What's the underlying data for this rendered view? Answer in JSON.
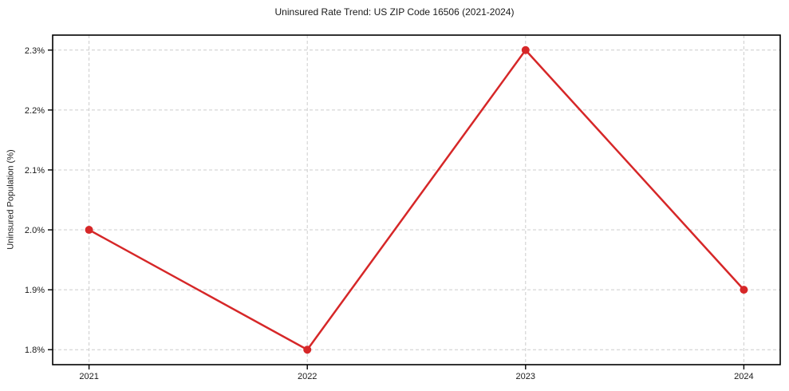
{
  "chart_data": {
    "type": "line",
    "title": "Uninsured Rate Trend: US ZIP Code 16506 (2021-2024)",
    "xlabel": "",
    "ylabel": "Uninsured Population (%)",
    "categories": [
      "2021",
      "2022",
      "2023",
      "2024"
    ],
    "series": [
      {
        "name": "Uninsured Population (%)",
        "values": [
          2.0,
          1.8,
          2.3,
          1.9
        ]
      }
    ],
    "y_ticks": [
      "1.8%",
      "1.9%",
      "2.0%",
      "2.1%",
      "2.2%",
      "2.3%"
    ],
    "ylim": [
      1.775,
      2.325
    ],
    "grid": true,
    "legend_position": "none",
    "line_color": "#d62728",
    "marker": "circle",
    "grid_color": "#cccccc",
    "axis_color": "#000000"
  }
}
